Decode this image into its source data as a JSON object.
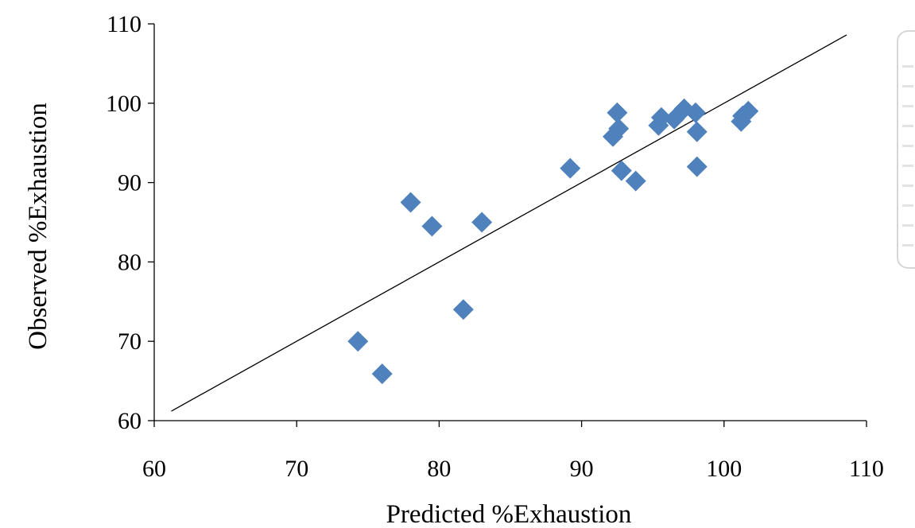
{
  "chart_data": {
    "type": "scatter",
    "title": "",
    "xlabel": "Predicted %Exhaustion",
    "ylabel": "Observed %Exhaustion",
    "xlim": [
      60,
      110
    ],
    "ylim": [
      60,
      110
    ],
    "xticks": [
      "60",
      "70",
      "80",
      "90",
      "100",
      "110"
    ],
    "yticks": [
      "60",
      "70",
      "80",
      "90",
      "100",
      "110"
    ],
    "grid": false,
    "legend": "none",
    "marker": "diamond",
    "marker_color": "#4f81bd",
    "series": [
      {
        "points": [
          {
            "x": 74.3,
            "y": 70.0
          },
          {
            "x": 76.0,
            "y": 65.9
          },
          {
            "x": 78.0,
            "y": 87.5
          },
          {
            "x": 79.5,
            "y": 84.5
          },
          {
            "x": 81.7,
            "y": 74.0
          },
          {
            "x": 83.0,
            "y": 85.0
          },
          {
            "x": 89.2,
            "y": 91.8
          },
          {
            "x": 92.2,
            "y": 95.8
          },
          {
            "x": 92.5,
            "y": 98.8
          },
          {
            "x": 92.6,
            "y": 96.8
          },
          {
            "x": 92.8,
            "y": 91.5
          },
          {
            "x": 93.8,
            "y": 90.2
          },
          {
            "x": 95.4,
            "y": 97.2
          },
          {
            "x": 95.6,
            "y": 98.2
          },
          {
            "x": 96.5,
            "y": 98.0
          },
          {
            "x": 97.2,
            "y": 99.3
          },
          {
            "x": 98.0,
            "y": 98.8
          },
          {
            "x": 98.1,
            "y": 96.4
          },
          {
            "x": 98.1,
            "y": 92.0
          },
          {
            "x": 101.2,
            "y": 97.7
          },
          {
            "x": 101.3,
            "y": 98.4
          },
          {
            "x": 101.7,
            "y": 99.0
          }
        ]
      }
    ],
    "fit_line": {
      "from": {
        "x": 61.2,
        "y": 61.2
      },
      "to": {
        "x": 108.6,
        "y": 108.6
      },
      "color": "#000000"
    }
  }
}
